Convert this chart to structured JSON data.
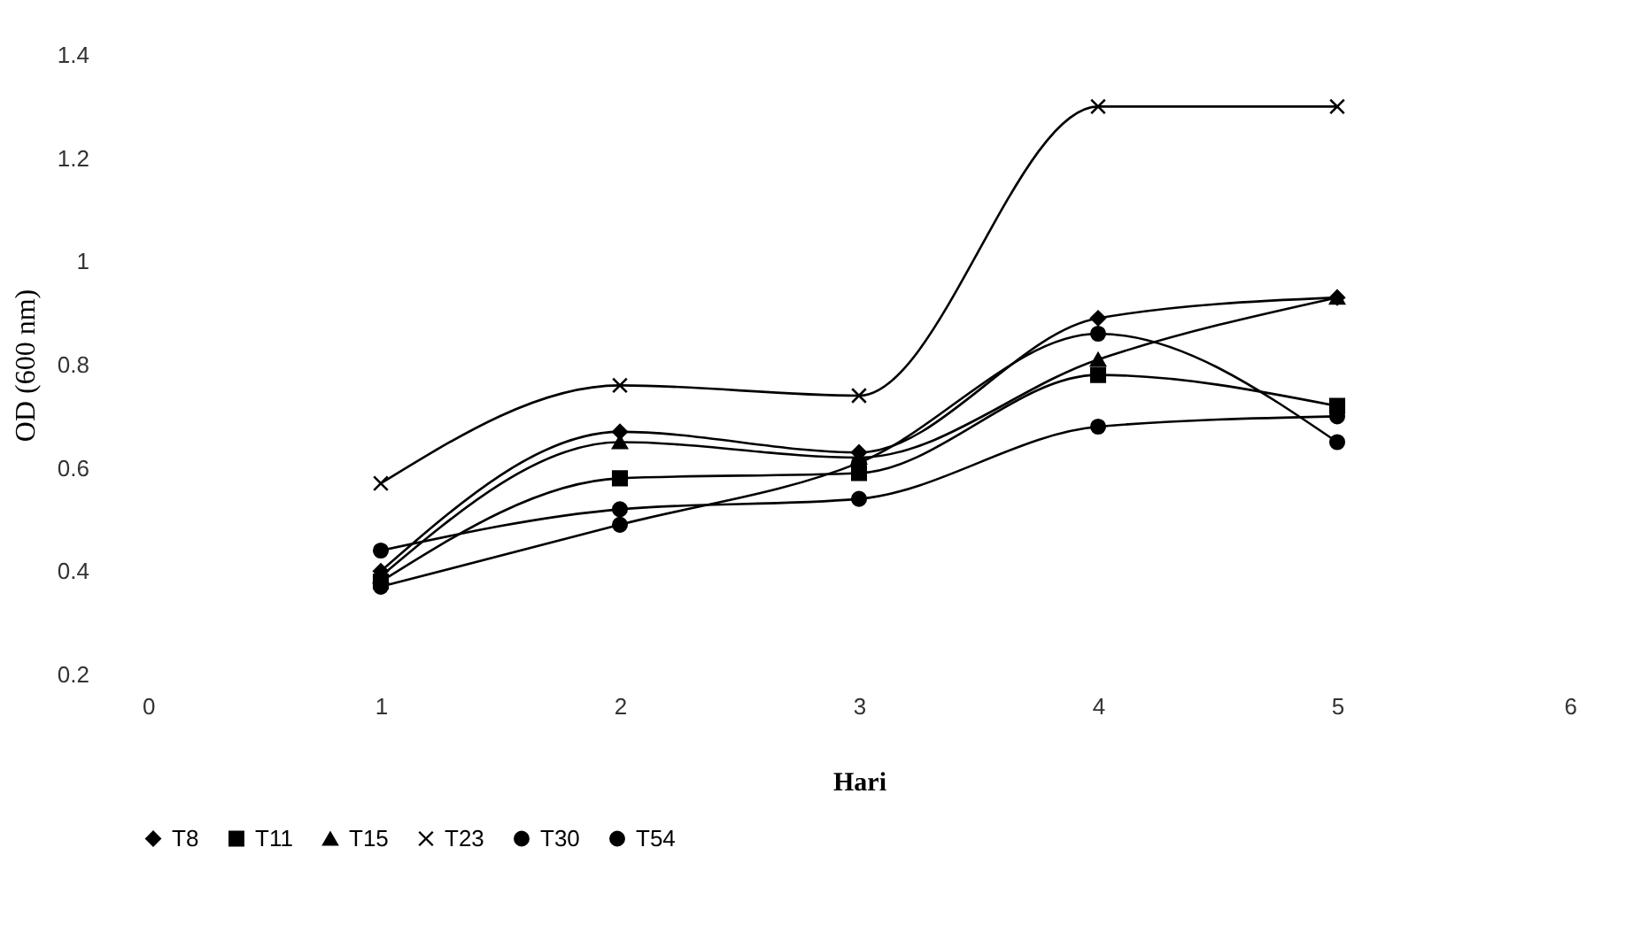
{
  "chart_data": {
    "type": "line",
    "xlabel": "Hari",
    "ylabel": "OD (600 nm)",
    "x": [
      1,
      2,
      3,
      4,
      5
    ],
    "xlim": [
      0,
      6
    ],
    "xticks": [
      0,
      1,
      2,
      3,
      4,
      5,
      6
    ],
    "ylim": [
      0.2,
      1.4
    ],
    "yticks": [
      0.2,
      0.4,
      0.6,
      0.8,
      1,
      1.2,
      1.4
    ],
    "grid": false,
    "legend": "bottom",
    "line_style": "solid",
    "series": [
      {
        "name": "T8",
        "color": "#000000",
        "marker": "diamond",
        "values": [
          0.4,
          0.67,
          0.63,
          0.89,
          0.93
        ]
      },
      {
        "name": "T11",
        "color": "#000000",
        "marker": "square",
        "values": [
          0.38,
          0.58,
          0.59,
          0.78,
          0.72
        ]
      },
      {
        "name": "T15",
        "color": "#000000",
        "marker": "triangle",
        "values": [
          0.39,
          0.65,
          0.62,
          0.81,
          0.93
        ]
      },
      {
        "name": "T23",
        "color": "#000000",
        "marker": "cross",
        "values": [
          0.57,
          0.76,
          0.74,
          1.3,
          1.3
        ]
      },
      {
        "name": "T30",
        "color": "#000000",
        "marker": "circle",
        "values": [
          0.37,
          0.49,
          0.61,
          0.86,
          0.65
        ]
      },
      {
        "name": "T54",
        "color": "#000000",
        "marker": "circle",
        "values": [
          0.44,
          0.52,
          0.54,
          0.68,
          0.7
        ]
      }
    ]
  }
}
